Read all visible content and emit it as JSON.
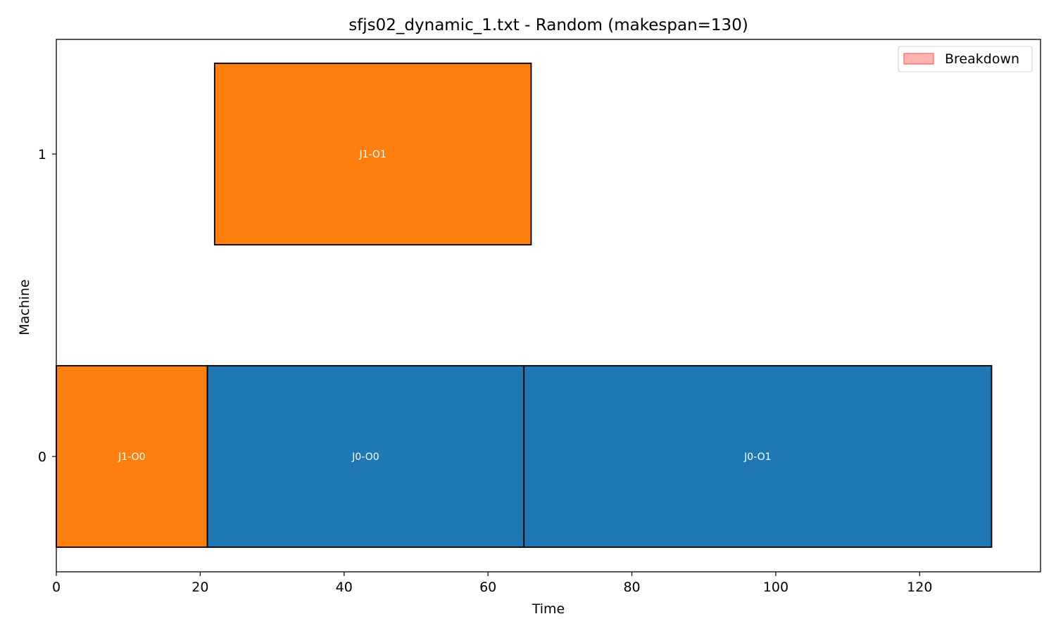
{
  "chart_data": {
    "type": "gantt",
    "title": "sfjs02_dynamic_1.txt - Random (makespan=130)",
    "xlabel": "Time",
    "ylabel": "Machine",
    "xlim": [
      0,
      136.8
    ],
    "xticks": [
      0,
      20,
      40,
      60,
      80,
      100,
      120
    ],
    "machines": [
      "0",
      "1"
    ],
    "job_colors": {
      "J0": "#1f77b4",
      "J1": "#ff7f0e"
    },
    "operations": [
      {
        "label": "J1-O0",
        "job": "J1",
        "machine": 0,
        "start": 0,
        "end": 21
      },
      {
        "label": "J0-O0",
        "job": "J0",
        "machine": 0,
        "start": 21,
        "end": 65
      },
      {
        "label": "J0-O1",
        "job": "J0",
        "machine": 0,
        "start": 65,
        "end": 130
      },
      {
        "label": "J1-O1",
        "job": "J1",
        "machine": 1,
        "start": 22,
        "end": 66
      }
    ],
    "legend": {
      "placement": "top-right",
      "entries": [
        {
          "name": "Breakdown",
          "color": "#ff9896"
        }
      ]
    },
    "grid": false
  }
}
